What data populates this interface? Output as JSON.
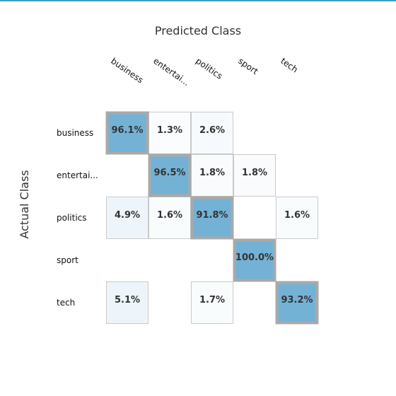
{
  "chart_data": {
    "type": "heatmap",
    "title": "",
    "xlabel": "Predicted Class",
    "ylabel": "Actual Class",
    "columns": [
      "business",
      "entertai...",
      "politics",
      "sport",
      "tech"
    ],
    "rows": [
      "business",
      "entertai...",
      "politics",
      "sport",
      "tech"
    ],
    "cells": [
      {
        "row": 0,
        "col": 0,
        "value": 96.1,
        "label": "96.1%"
      },
      {
        "row": 0,
        "col": 1,
        "value": 1.3,
        "label": "1.3%"
      },
      {
        "row": 0,
        "col": 2,
        "value": 2.6,
        "label": "2.6%"
      },
      {
        "row": 1,
        "col": 1,
        "value": 96.5,
        "label": "96.5%"
      },
      {
        "row": 1,
        "col": 2,
        "value": 1.8,
        "label": "1.8%"
      },
      {
        "row": 1,
        "col": 3,
        "value": 1.8,
        "label": "1.8%"
      },
      {
        "row": 2,
        "col": 0,
        "value": 4.9,
        "label": "4.9%"
      },
      {
        "row": 2,
        "col": 1,
        "value": 1.6,
        "label": "1.6%"
      },
      {
        "row": 2,
        "col": 2,
        "value": 91.8,
        "label": "91.8%"
      },
      {
        "row": 2,
        "col": 4,
        "value": 1.6,
        "label": "1.6%"
      },
      {
        "row": 3,
        "col": 3,
        "value": 100.0,
        "label": "100.0%"
      },
      {
        "row": 4,
        "col": 0,
        "value": 5.1,
        "label": "5.1%"
      },
      {
        "row": 4,
        "col": 2,
        "value": 1.7,
        "label": "1.7%"
      },
      {
        "row": 4,
        "col": 4,
        "value": 93.2,
        "label": "93.2%"
      }
    ],
    "colors": {
      "diagonal_fill": "#73b2d5",
      "diagonal_border": "#a9a9a9",
      "cell_border": "#c9c9c9",
      "offdiag_fill_low": "#ffffff",
      "offdiag_fill_high": "#eaf3f9",
      "accent_bar": "#3aa0c4"
    }
  }
}
